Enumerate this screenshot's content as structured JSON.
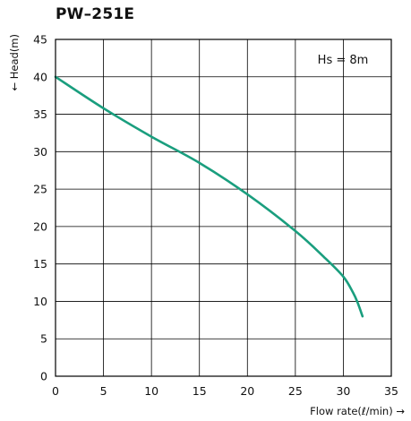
{
  "chart_data": {
    "type": "line",
    "title": "PW–251E",
    "xlabel": "Flow rate(ℓ/min) →",
    "ylabel": "← Head(m)",
    "annotation": "Hs = 8m",
    "xlim": [
      0,
      35
    ],
    "ylim": [
      0,
      45
    ],
    "x_ticks": [
      "0",
      "5",
      "10",
      "15",
      "20",
      "25",
      "30",
      "35"
    ],
    "y_ticks": [
      "0",
      "5",
      "10",
      "15",
      "20",
      "25",
      "30",
      "35",
      "40",
      "45"
    ],
    "grid": true,
    "series": [
      {
        "color": "#1a9e7e",
        "points": [
          [
            0,
            40
          ],
          [
            5,
            35.8
          ],
          [
            10,
            32
          ],
          [
            15,
            28.5
          ],
          [
            20,
            24.3
          ],
          [
            25,
            19.4
          ],
          [
            28,
            15.9
          ],
          [
            30,
            13.3
          ],
          [
            31,
            11.2
          ],
          [
            31.5,
            9.8
          ],
          [
            32,
            8
          ]
        ]
      }
    ]
  }
}
